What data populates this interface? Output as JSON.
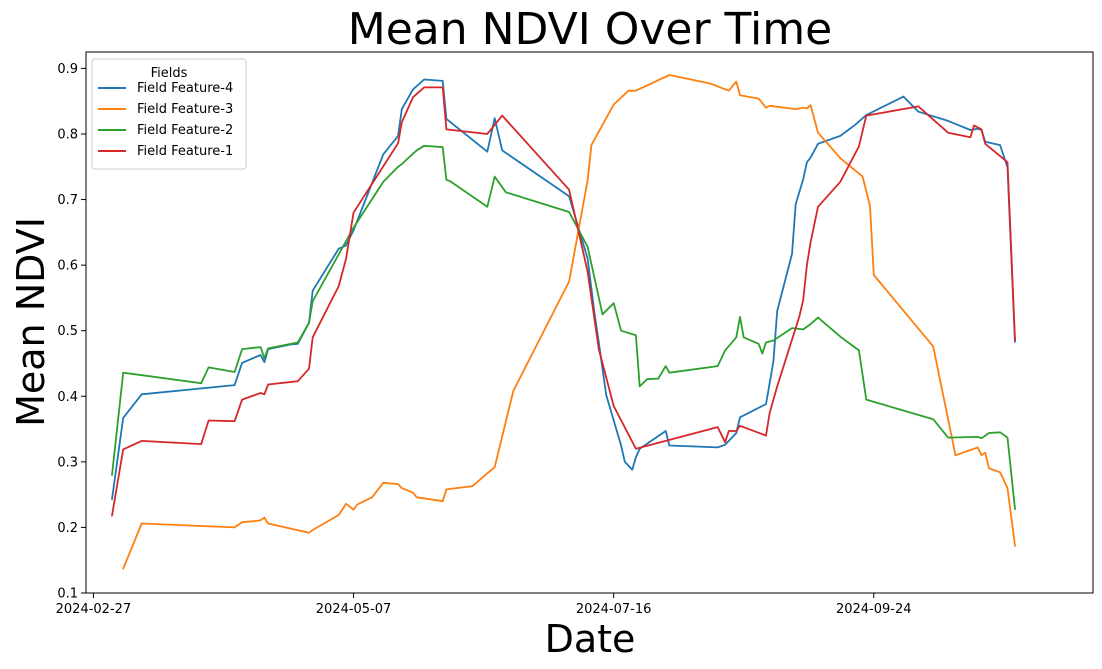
{
  "chart_data": {
    "type": "line",
    "title": "Mean NDVI Over Time",
    "xlabel": "Date",
    "ylabel": "Mean NDVI",
    "xlim": [
      "2024-02-25",
      "2024-11-22"
    ],
    "ylim": [
      0.1,
      0.925
    ],
    "x_ticks": [
      "2024-02-27",
      "2024-05-07",
      "2024-07-16",
      "2024-09-24"
    ],
    "y_ticks": [
      0.1,
      0.2,
      0.3,
      0.4,
      0.5,
      0.6,
      0.7,
      0.8,
      0.9
    ],
    "y_tick_labels": [
      "0.1",
      "0.2",
      "0.3",
      "0.4",
      "0.5",
      "0.6",
      "0.7",
      "0.8",
      "0.9"
    ],
    "grid": false,
    "legend": {
      "title": "Fields",
      "position": "top-left"
    },
    "series": [
      {
        "name": "Field Feature-4",
        "color": "#1f77b4",
        "points": [
          [
            "2024-03-03",
            0.243
          ],
          [
            "2024-03-06",
            0.367
          ],
          [
            "2024-03-11",
            0.403
          ],
          [
            "2024-04-05",
            0.417
          ],
          [
            "2024-04-07",
            0.451
          ],
          [
            "2024-04-12",
            0.463
          ],
          [
            "2024-04-13",
            0.452
          ],
          [
            "2024-04-14",
            0.472
          ],
          [
            "2024-04-20",
            0.479
          ],
          [
            "2024-04-22",
            0.48
          ],
          [
            "2024-04-25",
            0.512
          ],
          [
            "2024-04-26",
            0.561
          ],
          [
            "2024-05-03",
            0.625
          ],
          [
            "2024-05-05",
            0.63
          ],
          [
            "2024-05-07",
            0.653
          ],
          [
            "2024-05-15",
            0.769
          ],
          [
            "2024-05-19",
            0.797
          ],
          [
            "2024-05-20",
            0.838
          ],
          [
            "2024-05-23",
            0.868
          ],
          [
            "2024-05-26",
            0.883
          ],
          [
            "2024-05-31",
            0.881
          ],
          [
            "2024-06-01",
            0.823
          ],
          [
            "2024-06-12",
            0.773
          ],
          [
            "2024-06-14",
            0.824
          ],
          [
            "2024-06-16",
            0.775
          ],
          [
            "2024-07-04",
            0.705
          ],
          [
            "2024-07-09",
            0.61
          ],
          [
            "2024-07-11",
            0.52
          ],
          [
            "2024-07-12",
            0.482
          ],
          [
            "2024-07-14",
            0.402
          ],
          [
            "2024-07-18",
            0.325
          ],
          [
            "2024-07-19",
            0.3
          ],
          [
            "2024-07-21",
            0.288
          ],
          [
            "2024-07-22",
            0.307
          ],
          [
            "2024-07-23",
            0.32
          ],
          [
            "2024-07-30",
            0.347
          ],
          [
            "2024-07-31",
            0.325
          ],
          [
            "2024-08-13",
            0.322
          ],
          [
            "2024-08-15",
            0.326
          ],
          [
            "2024-08-18",
            0.344
          ],
          [
            "2024-08-19",
            0.368
          ],
          [
            "2024-08-26",
            0.388
          ],
          [
            "2024-08-28",
            0.453
          ],
          [
            "2024-08-29",
            0.53
          ],
          [
            "2024-09-02",
            0.617
          ],
          [
            "2024-09-03",
            0.693
          ],
          [
            "2024-09-05",
            0.731
          ],
          [
            "2024-09-06",
            0.757
          ],
          [
            "2024-09-07",
            0.764
          ],
          [
            "2024-09-09",
            0.785
          ],
          [
            "2024-09-15",
            0.797
          ],
          [
            "2024-09-19",
            0.814
          ],
          [
            "2024-09-22",
            0.829
          ],
          [
            "2024-10-02",
            0.857
          ],
          [
            "2024-10-06",
            0.834
          ],
          [
            "2024-10-14",
            0.82
          ],
          [
            "2024-10-20",
            0.806
          ],
          [
            "2024-10-22",
            0.808
          ],
          [
            "2024-10-23",
            0.806
          ],
          [
            "2024-10-24",
            0.788
          ],
          [
            "2024-10-28",
            0.783
          ],
          [
            "2024-10-30",
            0.749
          ],
          [
            "2024-11-01",
            0.483
          ]
        ]
      },
      {
        "name": "Field Feature-3",
        "color": "#ff7f0e",
        "points": [
          [
            "2024-03-06",
            0.137
          ],
          [
            "2024-03-11",
            0.206
          ],
          [
            "2024-04-05",
            0.2
          ],
          [
            "2024-04-07",
            0.208
          ],
          [
            "2024-04-11",
            0.21
          ],
          [
            "2024-04-12",
            0.211
          ],
          [
            "2024-04-13",
            0.215
          ],
          [
            "2024-04-14",
            0.206
          ],
          [
            "2024-04-25",
            0.192
          ],
          [
            "2024-04-26",
            0.196
          ],
          [
            "2024-05-03",
            0.219
          ],
          [
            "2024-05-05",
            0.236
          ],
          [
            "2024-05-07",
            0.227
          ],
          [
            "2024-05-08",
            0.235
          ],
          [
            "2024-05-12",
            0.246
          ],
          [
            "2024-05-15",
            0.268
          ],
          [
            "2024-05-19",
            0.266
          ],
          [
            "2024-05-20",
            0.26
          ],
          [
            "2024-05-23",
            0.253
          ],
          [
            "2024-05-24",
            0.246
          ],
          [
            "2024-05-31",
            0.24
          ],
          [
            "2024-06-01",
            0.258
          ],
          [
            "2024-06-08",
            0.263
          ],
          [
            "2024-06-14",
            0.292
          ],
          [
            "2024-06-19",
            0.408
          ],
          [
            "2024-07-04",
            0.575
          ],
          [
            "2024-07-09",
            0.729
          ],
          [
            "2024-07-10",
            0.783
          ],
          [
            "2024-07-16",
            0.845
          ],
          [
            "2024-07-20",
            0.866
          ],
          [
            "2024-07-22",
            0.866
          ],
          [
            "2024-07-31",
            0.89
          ],
          [
            "2024-08-11",
            0.877
          ],
          [
            "2024-08-16",
            0.866
          ],
          [
            "2024-08-18",
            0.88
          ],
          [
            "2024-08-19",
            0.859
          ],
          [
            "2024-08-24",
            0.854
          ],
          [
            "2024-08-26",
            0.84
          ],
          [
            "2024-08-27",
            0.843
          ],
          [
            "2024-09-03",
            0.838
          ],
          [
            "2024-09-05",
            0.84
          ],
          [
            "2024-09-06",
            0.839
          ],
          [
            "2024-09-07",
            0.844
          ],
          [
            "2024-09-09",
            0.802
          ],
          [
            "2024-09-15",
            0.763
          ],
          [
            "2024-09-21",
            0.735
          ],
          [
            "2024-09-23",
            0.69
          ],
          [
            "2024-09-24",
            0.585
          ],
          [
            "2024-10-10",
            0.476
          ],
          [
            "2024-10-16",
            0.31
          ],
          [
            "2024-10-22",
            0.322
          ],
          [
            "2024-10-23",
            0.31
          ],
          [
            "2024-10-24",
            0.314
          ],
          [
            "2024-10-25",
            0.29
          ],
          [
            "2024-10-28",
            0.284
          ],
          [
            "2024-10-30",
            0.26
          ],
          [
            "2024-11-01",
            0.172
          ]
        ]
      },
      {
        "name": "Field Feature-2",
        "color": "#2ca02c",
        "points": [
          [
            "2024-03-03",
            0.28
          ],
          [
            "2024-03-06",
            0.436
          ],
          [
            "2024-03-27",
            0.42
          ],
          [
            "2024-03-29",
            0.444
          ],
          [
            "2024-04-05",
            0.437
          ],
          [
            "2024-04-07",
            0.472
          ],
          [
            "2024-04-12",
            0.475
          ],
          [
            "2024-04-13",
            0.458
          ],
          [
            "2024-04-14",
            0.473
          ],
          [
            "2024-04-22",
            0.482
          ],
          [
            "2024-04-25",
            0.512
          ],
          [
            "2024-04-26",
            0.545
          ],
          [
            "2024-05-07",
            0.657
          ],
          [
            "2024-05-15",
            0.727
          ],
          [
            "2024-05-19",
            0.75
          ],
          [
            "2024-05-20",
            0.754
          ],
          [
            "2024-05-23",
            0.77
          ],
          [
            "2024-05-24",
            0.775
          ],
          [
            "2024-05-26",
            0.782
          ],
          [
            "2024-05-31",
            0.78
          ],
          [
            "2024-06-01",
            0.73
          ],
          [
            "2024-06-02",
            0.728
          ],
          [
            "2024-06-12",
            0.689
          ],
          [
            "2024-06-14",
            0.735
          ],
          [
            "2024-06-17",
            0.711
          ],
          [
            "2024-07-04",
            0.681
          ],
          [
            "2024-07-09",
            0.628
          ],
          [
            "2024-07-13",
            0.525
          ],
          [
            "2024-07-16",
            0.542
          ],
          [
            "2024-07-18",
            0.5
          ],
          [
            "2024-07-22",
            0.493
          ],
          [
            "2024-07-23",
            0.415
          ],
          [
            "2024-07-25",
            0.426
          ],
          [
            "2024-07-28",
            0.427
          ],
          [
            "2024-07-30",
            0.446
          ],
          [
            "2024-07-31",
            0.436
          ],
          [
            "2024-08-13",
            0.446
          ],
          [
            "2024-08-15",
            0.47
          ],
          [
            "2024-08-18",
            0.49
          ],
          [
            "2024-08-19",
            0.521
          ],
          [
            "2024-08-20",
            0.49
          ],
          [
            "2024-08-24",
            0.48
          ],
          [
            "2024-08-25",
            0.465
          ],
          [
            "2024-08-26",
            0.482
          ],
          [
            "2024-08-28",
            0.485
          ],
          [
            "2024-09-02",
            0.504
          ],
          [
            "2024-09-05",
            0.502
          ],
          [
            "2024-09-07",
            0.51
          ],
          [
            "2024-09-09",
            0.52
          ],
          [
            "2024-09-15",
            0.491
          ],
          [
            "2024-09-20",
            0.47
          ],
          [
            "2024-09-22",
            0.395
          ],
          [
            "2024-10-10",
            0.365
          ],
          [
            "2024-10-14",
            0.337
          ],
          [
            "2024-10-22",
            0.338
          ],
          [
            "2024-10-23",
            0.336
          ],
          [
            "2024-10-25",
            0.344
          ],
          [
            "2024-10-28",
            0.345
          ],
          [
            "2024-10-30",
            0.337
          ],
          [
            "2024-11-01",
            0.228
          ]
        ]
      },
      {
        "name": "Field Feature-1",
        "color": "#d62728",
        "points": [
          [
            "2024-03-03",
            0.218
          ],
          [
            "2024-03-06",
            0.319
          ],
          [
            "2024-03-11",
            0.332
          ],
          [
            "2024-03-27",
            0.327
          ],
          [
            "2024-03-29",
            0.363
          ],
          [
            "2024-04-05",
            0.362
          ],
          [
            "2024-04-07",
            0.395
          ],
          [
            "2024-04-12",
            0.405
          ],
          [
            "2024-04-13",
            0.403
          ],
          [
            "2024-04-14",
            0.418
          ],
          [
            "2024-04-22",
            0.423
          ],
          [
            "2024-04-25",
            0.442
          ],
          [
            "2024-04-26",
            0.49
          ],
          [
            "2024-05-03",
            0.568
          ],
          [
            "2024-05-05",
            0.61
          ],
          [
            "2024-05-07",
            0.68
          ],
          [
            "2024-05-19",
            0.786
          ],
          [
            "2024-05-20",
            0.818
          ],
          [
            "2024-05-23",
            0.856
          ],
          [
            "2024-05-26",
            0.871
          ],
          [
            "2024-05-31",
            0.871
          ],
          [
            "2024-06-01",
            0.807
          ],
          [
            "2024-06-12",
            0.8
          ],
          [
            "2024-06-16",
            0.828
          ],
          [
            "2024-07-04",
            0.715
          ],
          [
            "2024-07-09",
            0.59
          ],
          [
            "2024-07-12",
            0.472
          ],
          [
            "2024-07-16",
            0.385
          ],
          [
            "2024-07-22",
            0.32
          ],
          [
            "2024-08-13",
            0.353
          ],
          [
            "2024-08-15",
            0.33
          ],
          [
            "2024-08-16",
            0.347
          ],
          [
            "2024-08-18",
            0.347
          ],
          [
            "2024-08-19",
            0.355
          ],
          [
            "2024-08-26",
            0.34
          ],
          [
            "2024-08-27",
            0.375
          ],
          [
            "2024-08-29",
            0.415
          ],
          [
            "2024-09-04",
            0.522
          ],
          [
            "2024-09-05",
            0.547
          ],
          [
            "2024-09-06",
            0.6
          ],
          [
            "2024-09-07",
            0.635
          ],
          [
            "2024-09-09",
            0.689
          ],
          [
            "2024-09-15",
            0.727
          ],
          [
            "2024-09-20",
            0.781
          ],
          [
            "2024-09-22",
            0.828
          ],
          [
            "2024-10-06",
            0.842
          ],
          [
            "2024-10-14",
            0.802
          ],
          [
            "2024-10-20",
            0.795
          ],
          [
            "2024-10-21",
            0.813
          ],
          [
            "2024-10-23",
            0.807
          ],
          [
            "2024-10-24",
            0.785
          ],
          [
            "2024-10-30",
            0.757
          ],
          [
            "2024-11-01",
            0.485
          ]
        ]
      }
    ]
  }
}
